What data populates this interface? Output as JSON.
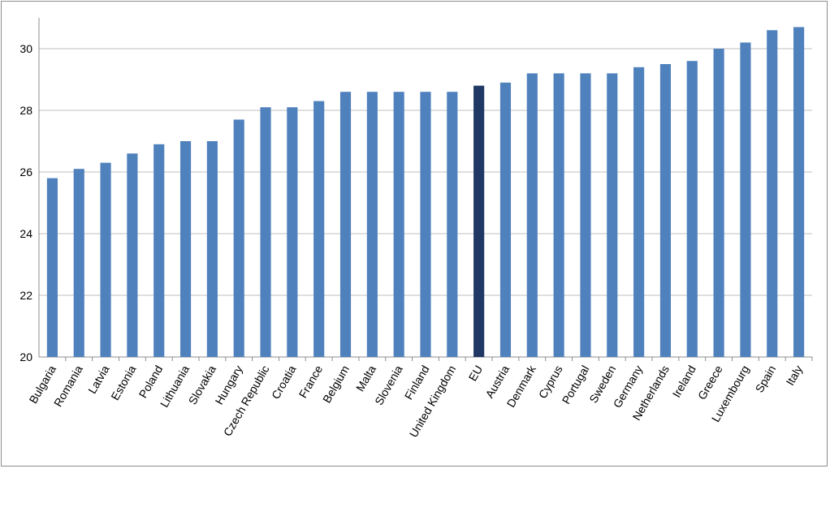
{
  "chart_data": {
    "type": "bar",
    "title": "",
    "xlabel": "",
    "ylabel": "",
    "categories": [
      "Bulgaria",
      "Romania",
      "Latvia",
      "Estonia",
      "Poland",
      "Lithuania",
      "Slovakia",
      "Hungary",
      "Czech Republic",
      "Croatia",
      "France",
      "Belgium",
      "Malta",
      "Slovenia",
      "Finland",
      "United Kingdom",
      "EU",
      "Austria",
      "Denmark",
      "Cyprus",
      "Portugal",
      "Sweden",
      "Germany",
      "Netherlands",
      "Ireland",
      "Greece",
      "Luxembourg",
      "Spain",
      "Italy"
    ],
    "values": [
      25.8,
      26.1,
      26.3,
      26.6,
      26.9,
      27.0,
      27.0,
      27.7,
      28.1,
      28.1,
      28.3,
      28.6,
      28.6,
      28.6,
      28.6,
      28.6,
      28.8,
      28.9,
      29.2,
      29.2,
      29.2,
      29.2,
      29.4,
      29.5,
      29.6,
      30.0,
      30.2,
      30.6,
      30.7
    ],
    "ylim": [
      20,
      31
    ],
    "yticks": [
      20,
      22,
      24,
      26,
      28,
      30
    ],
    "grid": true,
    "legend": "none",
    "highlight_category": "EU",
    "colors": {
      "bar": "#4f81bd",
      "highlight": "#1f3864",
      "grid": "#bfbfbf",
      "axis": "#8c8c8c"
    }
  }
}
